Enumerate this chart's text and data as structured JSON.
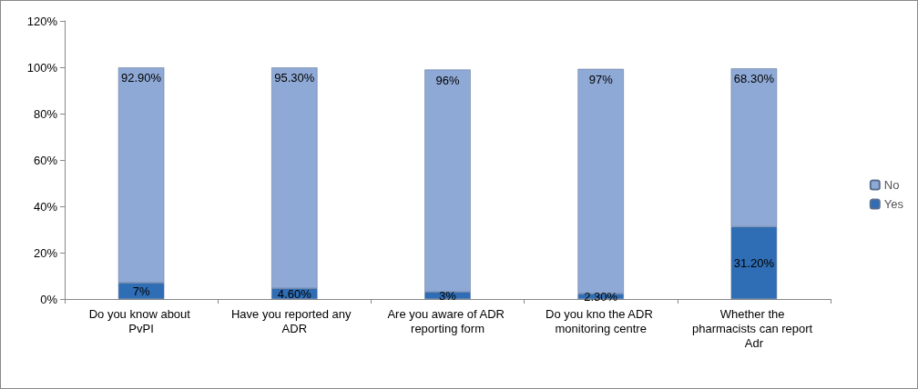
{
  "chart_data": {
    "type": "bar",
    "stacked": true,
    "categories": [
      "Do you know about PvPI",
      "Have you reported any  ADR",
      "Are you aware of ADR reporting form",
      "Do you kno the ADR monitoring centre",
      "Whether the pharmacists can report Adr"
    ],
    "series": [
      {
        "name": "Yes",
        "color": "#2f6db5",
        "values": [
          7,
          4.6,
          3,
          2.3,
          31.2
        ],
        "value_labels": [
          "7%",
          "4.60%",
          "3%",
          "2.30%",
          "31.20%"
        ]
      },
      {
        "name": "No",
        "color": "#8fa9d6",
        "values": [
          92.9,
          95.3,
          96,
          97,
          68.3
        ],
        "value_labels": [
          "92.90%",
          "95.30%",
          "96%",
          "97%",
          "68.30%"
        ]
      }
    ],
    "ylim": [
      0,
      120
    ],
    "yticks": [
      {
        "value": 0,
        "label": "0%"
      },
      {
        "value": 20,
        "label": "20%"
      },
      {
        "value": 40,
        "label": "40%"
      },
      {
        "value": 60,
        "label": "60%"
      },
      {
        "value": 80,
        "label": "80%"
      },
      {
        "value": 100,
        "label": "100%"
      },
      {
        "value": 120,
        "label": "120%"
      }
    ],
    "legend": "right"
  }
}
